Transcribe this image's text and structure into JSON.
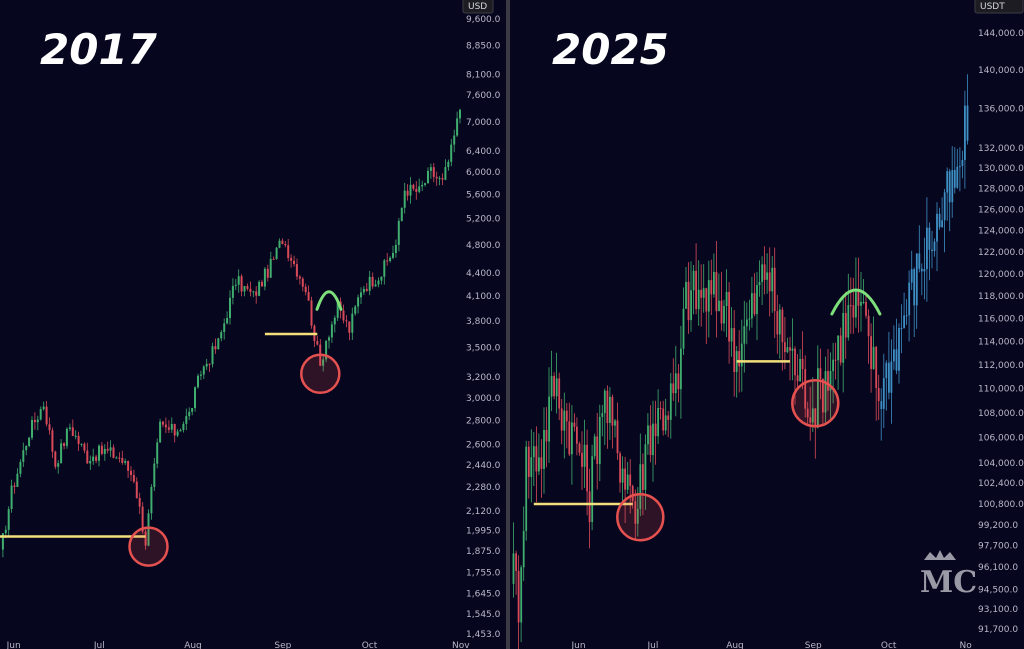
{
  "colors": {
    "background": "#07061f",
    "bullish": "#3fae6e",
    "bearish": "#d94a58",
    "projection": "#3d8fc4",
    "support_line": "#f3e07a",
    "circle": "#e4514f",
    "arc": "#7ee07a"
  },
  "chart_data": [
    {
      "type": "candlestick",
      "title": "2017",
      "currency": "USD",
      "y_scale": "log",
      "ylim": [
        1453,
        9600
      ],
      "y_ticks": [
        "9,600.0",
        "8,850.0",
        "8,100.0",
        "7,600.0",
        "7,000.0",
        "6,400.0",
        "6,000.0",
        "5,600.0",
        "5,200.0",
        "4,800.0",
        "4,400.0",
        "4,100.0",
        "3,800.0",
        "3,500.0",
        "3,200.0",
        "3,000.0",
        "2,800.0",
        "2,600.0",
        "2,440.0",
        "2,280.0",
        "2,120.0",
        "1,995.0",
        "1,875.0",
        "1,755.0",
        "1,645.0",
        "1,545.0",
        "1,453.0"
      ],
      "x_ticks": [
        "Jun",
        "Jul",
        "Aug",
        "Sep",
        "Oct",
        "Nov"
      ],
      "x_range": [
        "2017-05-27",
        "2017-11-01"
      ],
      "anchors": [
        [
          "2017-05-27",
          1850
        ],
        [
          "2017-05-31",
          2250
        ],
        [
          "2017-06-06",
          2700
        ],
        [
          "2017-06-11",
          2950
        ],
        [
          "2017-06-15",
          2450
        ],
        [
          "2017-06-20",
          2750
        ],
        [
          "2017-06-26",
          2500
        ],
        [
          "2017-07-02",
          2550
        ],
        [
          "2017-07-07",
          2500
        ],
        [
          "2017-07-12",
          2350
        ],
        [
          "2017-07-16",
          1930
        ],
        [
          "2017-07-18",
          2250
        ],
        [
          "2017-07-21",
          2750
        ],
        [
          "2017-07-26",
          2700
        ],
        [
          "2017-07-31",
          2850
        ],
        [
          "2017-08-04",
          3250
        ],
        [
          "2017-08-10",
          3550
        ],
        [
          "2017-08-16",
          4300
        ],
        [
          "2017-08-22",
          4100
        ],
        [
          "2017-08-28",
          4500
        ],
        [
          "2017-09-01",
          4900
        ],
        [
          "2017-09-06",
          4450
        ],
        [
          "2017-09-09",
          4200
        ],
        [
          "2017-09-14",
          3300
        ],
        [
          "2017-09-16",
          3600
        ],
        [
          "2017-09-20",
          3950
        ],
        [
          "2017-09-24",
          3700
        ],
        [
          "2017-09-28",
          4200
        ],
        [
          "2017-10-05",
          4400
        ],
        [
          "2017-10-10",
          4800
        ],
        [
          "2017-10-13",
          5700
        ],
        [
          "2017-10-18",
          5650
        ],
        [
          "2017-10-22",
          6000
        ],
        [
          "2017-10-26",
          5800
        ],
        [
          "2017-10-29",
          6400
        ],
        [
          "2017-11-01",
          7300
        ]
      ],
      "candle_days": 1,
      "support_level": 1960,
      "support_from": "2017-05-27",
      "support_to": "2017-07-16",
      "support_level_2": 3650,
      "support2_from": "2017-08-26",
      "support2_to": "2017-09-13",
      "circled_low": [
        "2017-07-17",
        1900
      ],
      "circled_low_2": [
        "2017-09-14",
        3230
      ],
      "arc_peak": [
        "2017-09-17",
        4100
      ]
    },
    {
      "type": "candlestick",
      "title": "2025",
      "currency": "USDT",
      "y_scale": "log",
      "ylim": [
        91700,
        146000
      ],
      "y_ticks": [
        "144,000.0",
        "140,000.0",
        "136,000.0",
        "132,000.0",
        "130,000.0",
        "128,000.0",
        "126,000.0",
        "124,000.0",
        "122,000.0",
        "120,000.0",
        "118,000.0",
        "116,000.0",
        "114,000.0",
        "112,000.0",
        "110,000.0",
        "108,000.0",
        "106,000.0",
        "104,000.0",
        "102,400.0",
        "100,800.0",
        "99,200.0",
        "97,700.0",
        "96,100.0",
        "94,500.0",
        "93,100.0",
        "91,700.0"
      ],
      "x_ticks": [
        "Jun",
        "Jul",
        "Aug",
        "Sep",
        "Oct",
        "No"
      ],
      "x_range": [
        "2025-05-05",
        "2025-11-02"
      ],
      "anchors": [
        [
          "2025-05-05",
          96500
        ],
        [
          "2025-05-08",
          94000
        ],
        [
          "2025-05-11",
          104000
        ],
        [
          "2025-05-17",
          105000
        ],
        [
          "2025-05-22",
          110500
        ],
        [
          "2025-05-26",
          108000
        ],
        [
          "2025-06-01",
          105000
        ],
        [
          "2025-06-05",
          101500
        ],
        [
          "2025-06-10",
          109500
        ],
        [
          "2025-06-16",
          105000
        ],
        [
          "2025-06-21",
          102500
        ],
        [
          "2025-06-23",
          99800
        ],
        [
          "2025-06-28",
          106500
        ],
        [
          "2025-07-05",
          108500
        ],
        [
          "2025-07-10",
          110000
        ],
        [
          "2025-07-13",
          118000
        ],
        [
          "2025-07-20",
          118000
        ],
        [
          "2025-07-28",
          117500
        ],
        [
          "2025-08-02",
          113000
        ],
        [
          "2025-08-08",
          116500
        ],
        [
          "2025-08-14",
          121000
        ],
        [
          "2025-08-18",
          115500
        ],
        [
          "2025-08-23",
          113000
        ],
        [
          "2025-08-28",
          110500
        ],
        [
          "2025-09-01",
          108500
        ],
        [
          "2025-09-06",
          111000
        ],
        [
          "2025-09-10",
          113000
        ],
        [
          "2025-09-14",
          116000
        ],
        [
          "2025-09-19",
          117000
        ],
        [
          "2025-09-23",
          114000
        ],
        [
          "2025-09-27",
          109500
        ],
        [
          "2025-10-03",
          113000
        ],
        [
          "2025-10-09",
          118000
        ],
        [
          "2025-10-15",
          122000
        ],
        [
          "2025-10-20",
          124500
        ],
        [
          "2025-10-24",
          127000
        ],
        [
          "2025-10-28",
          128500
        ],
        [
          "2025-11-01",
          135000
        ]
      ],
      "projection_from": "2025-09-28",
      "candle_days": 1,
      "support_level": 100800,
      "support_from": "2025-05-14",
      "support_to": "2025-06-22",
      "support_level_2": 112300,
      "support2_from": "2025-08-02",
      "support2_to": "2025-08-23",
      "circled_low": [
        "2025-06-25",
        99800
      ],
      "circled_low_2": [
        "2025-09-02",
        108800
      ],
      "arc_peak": [
        "2025-09-18",
        118000
      ]
    }
  ],
  "logo": {
    "text": "MC"
  }
}
